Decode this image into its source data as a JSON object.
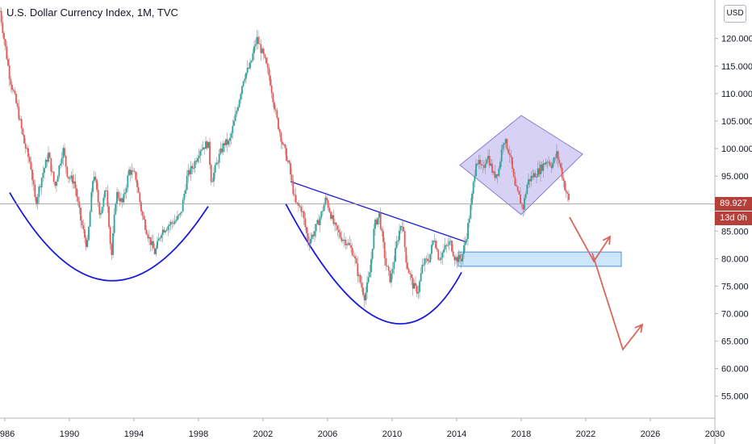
{
  "header": {
    "title": "U.S. Dollar Currency Index, 1M, TVC",
    "currency_button": "USD"
  },
  "price_tags": {
    "last_price": "89.927",
    "countdown": "13d 0h"
  },
  "colors": {
    "candle_up": "#26a69a",
    "candle_down": "#ef5350",
    "trendline": "#1a1adb",
    "forecast_arrow": "#d9665c",
    "diamond_fill": "#c6bdf2",
    "zone_fill": "#cde6fb"
  },
  "chart_data": {
    "type": "candlestick",
    "title": "U.S. Dollar Currency Index, 1M, TVC",
    "x_ticks": [
      "1986",
      "1990",
      "1994",
      "1998",
      "2002",
      "2006",
      "2010",
      "2014",
      "2018",
      "2022",
      "2026",
      "2030"
    ],
    "y_ticks": [
      "55.000",
      "60.000",
      "65.000",
      "70.000",
      "75.000",
      "80.000",
      "85.000",
      "95.000",
      "100.000",
      "105.000",
      "110.000",
      "115.000",
      "120.000"
    ],
    "ylim": [
      51,
      127
    ],
    "xlim": [
      1985.7,
      2030
    ],
    "last_price": 89.927,
    "series_points": [
      [
        1985.7,
        125
      ],
      [
        1985.9,
        121
      ],
      [
        1986.3,
        113
      ],
      [
        1986.8,
        107
      ],
      [
        1987.2,
        101
      ],
      [
        1987.6,
        97
      ],
      [
        1987.9,
        90
      ],
      [
        1988.3,
        95
      ],
      [
        1988.7,
        99
      ],
      [
        1989.1,
        93
      ],
      [
        1989.6,
        100
      ],
      [
        1989.9,
        95
      ],
      [
        1990.3,
        94
      ],
      [
        1990.7,
        87
      ],
      [
        1991.1,
        82
      ],
      [
        1991.5,
        96
      ],
      [
        1991.9,
        88
      ],
      [
        1992.3,
        93
      ],
      [
        1992.6,
        80
      ],
      [
        1992.9,
        92
      ],
      [
        1993.3,
        90
      ],
      [
        1993.7,
        96
      ],
      [
        1994.1,
        95
      ],
      [
        1994.5,
        88
      ],
      [
        1994.9,
        84
      ],
      [
        1995.3,
        81
      ],
      [
        1995.7,
        85
      ],
      [
        1996.1,
        86
      ],
      [
        1996.6,
        87
      ],
      [
        1996.9,
        88
      ],
      [
        1997.3,
        95
      ],
      [
        1997.7,
        97
      ],
      [
        1998.1,
        100
      ],
      [
        1998.6,
        101
      ],
      [
        1998.8,
        94
      ],
      [
        1999.2,
        98
      ],
      [
        1999.6,
        101
      ],
      [
        1999.9,
        101
      ],
      [
        2000.3,
        106
      ],
      [
        2000.8,
        113
      ],
      [
        2001.2,
        115
      ],
      [
        2001.6,
        120
      ],
      [
        2002.0,
        117
      ],
      [
        2002.4,
        113
      ],
      [
        2002.8,
        106
      ],
      [
        2003.2,
        101
      ],
      [
        2003.6,
        97
      ],
      [
        2004.0,
        90
      ],
      [
        2004.4,
        89
      ],
      [
        2004.8,
        83
      ],
      [
        2005.2,
        85
      ],
      [
        2005.6,
        88
      ],
      [
        2005.9,
        91
      ],
      [
        2006.4,
        86
      ],
      [
        2006.8,
        84
      ],
      [
        2007.2,
        83
      ],
      [
        2007.6,
        81
      ],
      [
        2007.9,
        77
      ],
      [
        2008.3,
        73
      ],
      [
        2008.6,
        77
      ],
      [
        2008.9,
        86
      ],
      [
        2009.2,
        88
      ],
      [
        2009.6,
        79
      ],
      [
        2009.9,
        76
      ],
      [
        2010.3,
        83
      ],
      [
        2010.6,
        87
      ],
      [
        2010.9,
        79
      ],
      [
        2011.3,
        75
      ],
      [
        2011.6,
        74
      ],
      [
        2011.9,
        79
      ],
      [
        2012.3,
        80
      ],
      [
        2012.6,
        84
      ],
      [
        2012.9,
        80
      ],
      [
        2013.3,
        82
      ],
      [
        2013.6,
        83
      ],
      [
        2013.9,
        80
      ],
      [
        2014.3,
        80
      ],
      [
        2014.6,
        84
      ],
      [
        2014.9,
        90
      ],
      [
        2015.2,
        98
      ],
      [
        2015.6,
        96
      ],
      [
        2015.9,
        99
      ],
      [
        2016.3,
        95
      ],
      [
        2016.6,
        96
      ],
      [
        2016.9,
        102
      ],
      [
        2017.3,
        99
      ],
      [
        2017.6,
        93
      ],
      [
        2017.9,
        91
      ],
      [
        2018.1,
        89
      ],
      [
        2018.4,
        94
      ],
      [
        2018.7,
        95
      ],
      [
        2019.1,
        96
      ],
      [
        2019.6,
        98
      ],
      [
        2019.9,
        97
      ],
      [
        2020.2,
        99
      ],
      [
        2020.4,
        97
      ],
      [
        2020.7,
        93
      ],
      [
        2020.9,
        91
      ],
      [
        2021.0,
        89.9
      ]
    ],
    "annotations": [
      {
        "kind": "rounding-arc",
        "from": [
          1986.3,
          92
        ],
        "through": [
          1992.4,
          76
        ],
        "to": [
          1998.6,
          89.5
        ]
      },
      {
        "kind": "rounding-arc",
        "from": [
          2003.4,
          90
        ],
        "through": [
          2009.4,
          68.8
        ],
        "to": [
          2014.3,
          77.5
        ]
      },
      {
        "kind": "trendline",
        "from": [
          2003.7,
          94
        ],
        "to": [
          2014.6,
          83
        ]
      },
      {
        "kind": "diamond",
        "points": [
          [
            2014.2,
            97
          ],
          [
            2018.0,
            106
          ],
          [
            2021.8,
            99
          ],
          [
            2018.0,
            88
          ]
        ]
      },
      {
        "kind": "zone",
        "x": [
          2014.1,
          2024.2
        ],
        "y": [
          78.6,
          81.2
        ]
      },
      {
        "kind": "forecast-path",
        "points": [
          [
            2021.0,
            87.5
          ],
          [
            2022.5,
            79.5
          ],
          [
            2023.5,
            84
          ]
        ]
      },
      {
        "kind": "forecast-path",
        "points": [
          [
            2022.4,
            81
          ],
          [
            2024.3,
            63.5
          ],
          [
            2025.5,
            68
          ]
        ]
      }
    ]
  }
}
